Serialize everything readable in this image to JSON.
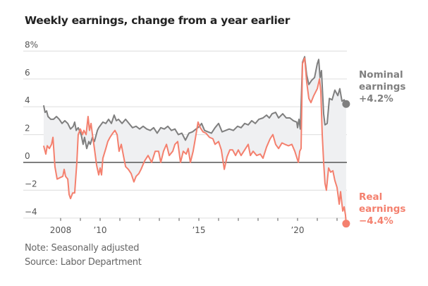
{
  "chart_data": {
    "type": "line",
    "title": "Weekly earnings, change from a year earlier",
    "xlabel": "",
    "ylabel": "",
    "ylim": [
      -4,
      8
    ],
    "xlim": [
      2006.2,
      2022.6
    ],
    "y_ticks": [
      {
        "value": 8,
        "label": "8%"
      },
      {
        "value": 6,
        "label": "6"
      },
      {
        "value": 4,
        "label": "4"
      },
      {
        "value": 2,
        "label": "2"
      },
      {
        "value": 0,
        "label": "0"
      },
      {
        "value": -2,
        "label": "−2"
      },
      {
        "value": -4,
        "label": "−4"
      }
    ],
    "x_ticks": [
      {
        "value": 2008,
        "label": "2008"
      },
      {
        "value": 2009,
        "label": ""
      },
      {
        "value": 2010,
        "label": "’10"
      },
      {
        "value": 2011,
        "label": ""
      },
      {
        "value": 2012,
        "label": ""
      },
      {
        "value": 2013,
        "label": ""
      },
      {
        "value": 2014,
        "label": ""
      },
      {
        "value": 2015,
        "label": "’15"
      },
      {
        "value": 2016,
        "label": ""
      },
      {
        "value": 2017,
        "label": ""
      },
      {
        "value": 2018,
        "label": ""
      },
      {
        "value": 2019,
        "label": ""
      },
      {
        "value": 2020,
        "label": "’20"
      },
      {
        "value": 2021,
        "label": ""
      },
      {
        "value": 2022,
        "label": ""
      }
    ],
    "grid": true,
    "shaded_between_series": true,
    "series": [
      {
        "name": "Nominal earnings",
        "label_lines": [
          "Nominal",
          "earnings",
          "+4.2%"
        ],
        "color": "#7f7f7f",
        "last_value": 4.2,
        "points": [
          [
            2007.14,
            4.1
          ],
          [
            2007.21,
            3.6
          ],
          [
            2007.29,
            3.7
          ],
          [
            2007.36,
            3.3
          ],
          [
            2007.5,
            3.1
          ],
          [
            2007.64,
            3.1
          ],
          [
            2007.79,
            3.3
          ],
          [
            2007.93,
            3.1
          ],
          [
            2008.07,
            2.8
          ],
          [
            2008.21,
            3.0
          ],
          [
            2008.36,
            2.8
          ],
          [
            2008.5,
            2.4
          ],
          [
            2008.64,
            2.6
          ],
          [
            2008.71,
            2.9
          ],
          [
            2008.79,
            2.3
          ],
          [
            2008.89,
            2.5
          ],
          [
            2009.04,
            2.0
          ],
          [
            2009.14,
            1.3
          ],
          [
            2009.21,
            1.8
          ],
          [
            2009.32,
            1.0
          ],
          [
            2009.43,
            1.5
          ],
          [
            2009.5,
            1.3
          ],
          [
            2009.61,
            1.8
          ],
          [
            2009.71,
            1.5
          ],
          [
            2009.86,
            2.3
          ],
          [
            2009.93,
            2.5
          ],
          [
            2010.14,
            2.9
          ],
          [
            2010.29,
            2.8
          ],
          [
            2010.43,
            3.1
          ],
          [
            2010.57,
            2.8
          ],
          [
            2010.71,
            3.4
          ],
          [
            2010.82,
            3.0
          ],
          [
            2010.93,
            3.1
          ],
          [
            2011.11,
            2.8
          ],
          [
            2011.29,
            3.1
          ],
          [
            2011.46,
            2.8
          ],
          [
            2011.64,
            2.5
          ],
          [
            2011.82,
            2.6
          ],
          [
            2012.0,
            2.4
          ],
          [
            2012.18,
            2.6
          ],
          [
            2012.36,
            2.4
          ],
          [
            2012.54,
            2.3
          ],
          [
            2012.71,
            2.5
          ],
          [
            2012.89,
            2.1
          ],
          [
            2013.07,
            2.5
          ],
          [
            2013.25,
            2.4
          ],
          [
            2013.43,
            2.6
          ],
          [
            2013.61,
            2.3
          ],
          [
            2013.79,
            2.4
          ],
          [
            2013.96,
            2.0
          ],
          [
            2014.14,
            2.1
          ],
          [
            2014.32,
            1.6
          ],
          [
            2014.5,
            2.1
          ],
          [
            2014.68,
            2.2
          ],
          [
            2014.86,
            2.4
          ],
          [
            2015.04,
            2.6
          ],
          [
            2015.14,
            2.8
          ],
          [
            2015.29,
            2.3
          ],
          [
            2015.46,
            2.2
          ],
          [
            2015.64,
            2.1
          ],
          [
            2015.82,
            2.5
          ],
          [
            2016.0,
            2.8
          ],
          [
            2016.18,
            2.2
          ],
          [
            2016.36,
            2.3
          ],
          [
            2016.54,
            2.4
          ],
          [
            2016.75,
            2.3
          ],
          [
            2016.96,
            2.6
          ],
          [
            2017.14,
            2.5
          ],
          [
            2017.32,
            2.8
          ],
          [
            2017.5,
            2.7
          ],
          [
            2017.68,
            3.0
          ],
          [
            2017.86,
            2.8
          ],
          [
            2018.04,
            3.1
          ],
          [
            2018.25,
            3.2
          ],
          [
            2018.43,
            3.4
          ],
          [
            2018.57,
            3.2
          ],
          [
            2018.71,
            3.5
          ],
          [
            2018.89,
            3.6
          ],
          [
            2019.04,
            3.2
          ],
          [
            2019.25,
            3.5
          ],
          [
            2019.43,
            3.2
          ],
          [
            2019.61,
            3.2
          ],
          [
            2019.79,
            3.0
          ],
          [
            2019.96,
            2.9
          ],
          [
            2020.0,
            2.5
          ],
          [
            2020.07,
            3.1
          ],
          [
            2020.14,
            2.4
          ],
          [
            2020.25,
            7.2
          ],
          [
            2020.36,
            7.6
          ],
          [
            2020.46,
            6.3
          ],
          [
            2020.57,
            5.6
          ],
          [
            2020.71,
            5.9
          ],
          [
            2020.86,
            6.1
          ],
          [
            2021.0,
            7.1
          ],
          [
            2021.07,
            7.4
          ],
          [
            2021.14,
            6.1
          ],
          [
            2021.21,
            6.6
          ],
          [
            2021.32,
            3.5
          ],
          [
            2021.39,
            2.7
          ],
          [
            2021.5,
            2.8
          ],
          [
            2021.61,
            4.6
          ],
          [
            2021.75,
            4.5
          ],
          [
            2021.89,
            5.2
          ],
          [
            2022.04,
            4.8
          ],
          [
            2022.14,
            5.3
          ],
          [
            2022.25,
            4.4
          ],
          [
            2022.36,
            4.5
          ],
          [
            2022.46,
            4.2
          ]
        ]
      },
      {
        "name": "Real earnings",
        "label_lines": [
          "Real",
          "earnings",
          "−4.4%"
        ],
        "color": "#f4806e",
        "last_value": -4.4,
        "points": [
          [
            2007.14,
            1.2
          ],
          [
            2007.25,
            0.6
          ],
          [
            2007.32,
            1.2
          ],
          [
            2007.43,
            1.0
          ],
          [
            2007.54,
            1.3
          ],
          [
            2007.61,
            1.8
          ],
          [
            2007.71,
            -0.3
          ],
          [
            2007.82,
            -1.2
          ],
          [
            2007.96,
            -1.1
          ],
          [
            2008.11,
            -1.0
          ],
          [
            2008.18,
            -0.5
          ],
          [
            2008.25,
            -1.0
          ],
          [
            2008.36,
            -1.2
          ],
          [
            2008.43,
            -2.3
          ],
          [
            2008.5,
            -2.6
          ],
          [
            2008.61,
            -2.2
          ],
          [
            2008.71,
            -2.2
          ],
          [
            2008.82,
            0.0
          ],
          [
            2008.89,
            2.0
          ],
          [
            2009.0,
            2.4
          ],
          [
            2009.11,
            2.0
          ],
          [
            2009.18,
            2.3
          ],
          [
            2009.29,
            2.0
          ],
          [
            2009.39,
            3.3
          ],
          [
            2009.46,
            2.3
          ],
          [
            2009.54,
            2.8
          ],
          [
            2009.61,
            2.0
          ],
          [
            2009.71,
            1.0
          ],
          [
            2009.82,
            -0.2
          ],
          [
            2009.93,
            -0.9
          ],
          [
            2010.0,
            -0.4
          ],
          [
            2010.07,
            -0.9
          ],
          [
            2010.14,
            0.3
          ],
          [
            2010.29,
            1.0
          ],
          [
            2010.39,
            1.5
          ],
          [
            2010.5,
            1.8
          ],
          [
            2010.64,
            2.1
          ],
          [
            2010.75,
            2.3
          ],
          [
            2010.86,
            2.0
          ],
          [
            2010.96,
            0.8
          ],
          [
            2011.07,
            1.3
          ],
          [
            2011.18,
            0.5
          ],
          [
            2011.29,
            -0.3
          ],
          [
            2011.43,
            -0.5
          ],
          [
            2011.57,
            -0.8
          ],
          [
            2011.71,
            -1.4
          ],
          [
            2011.82,
            -1.0
          ],
          [
            2011.96,
            -0.8
          ],
          [
            2012.07,
            -0.5
          ],
          [
            2012.25,
            0.1
          ],
          [
            2012.43,
            0.5
          ],
          [
            2012.61,
            0.0
          ],
          [
            2012.79,
            0.8
          ],
          [
            2012.96,
            0.8
          ],
          [
            2013.07,
            0.0
          ],
          [
            2013.21,
            0.8
          ],
          [
            2013.36,
            1.3
          ],
          [
            2013.5,
            0.5
          ],
          [
            2013.68,
            0.8
          ],
          [
            2013.79,
            1.3
          ],
          [
            2013.93,
            1.5
          ],
          [
            2014.07,
            0.0
          ],
          [
            2014.21,
            0.8
          ],
          [
            2014.36,
            0.6
          ],
          [
            2014.46,
            1.0
          ],
          [
            2014.57,
            0.0
          ],
          [
            2014.71,
            0.8
          ],
          [
            2014.82,
            1.7
          ],
          [
            2014.96,
            2.9
          ],
          [
            2015.07,
            2.5
          ],
          [
            2015.21,
            2.2
          ],
          [
            2015.36,
            2.1
          ],
          [
            2015.54,
            1.8
          ],
          [
            2015.71,
            1.7
          ],
          [
            2015.82,
            1.3
          ],
          [
            2016.0,
            1.5
          ],
          [
            2016.14,
            0.9
          ],
          [
            2016.29,
            -0.5
          ],
          [
            2016.43,
            0.4
          ],
          [
            2016.57,
            0.9
          ],
          [
            2016.71,
            0.9
          ],
          [
            2016.86,
            0.5
          ],
          [
            2017.0,
            0.9
          ],
          [
            2017.14,
            0.5
          ],
          [
            2017.32,
            0.9
          ],
          [
            2017.5,
            1.3
          ],
          [
            2017.61,
            0.5
          ],
          [
            2017.75,
            0.8
          ],
          [
            2017.93,
            0.5
          ],
          [
            2018.11,
            0.6
          ],
          [
            2018.25,
            0.3
          ],
          [
            2018.43,
            1.1
          ],
          [
            2018.61,
            1.7
          ],
          [
            2018.75,
            2.0
          ],
          [
            2018.89,
            1.3
          ],
          [
            2019.04,
            1.0
          ],
          [
            2019.21,
            1.4
          ],
          [
            2019.36,
            1.3
          ],
          [
            2019.54,
            1.2
          ],
          [
            2019.71,
            1.3
          ],
          [
            2019.86,
            0.8
          ],
          [
            2020.04,
            0.0
          ],
          [
            2020.11,
            0.8
          ],
          [
            2020.18,
            1.0
          ],
          [
            2020.25,
            7.1
          ],
          [
            2020.36,
            7.5
          ],
          [
            2020.46,
            5.8
          ],
          [
            2020.57,
            4.6
          ],
          [
            2020.68,
            4.3
          ],
          [
            2020.82,
            4.8
          ],
          [
            2021.0,
            5.3
          ],
          [
            2021.11,
            6.0
          ],
          [
            2021.18,
            5.1
          ],
          [
            2021.25,
            2.0
          ],
          [
            2021.32,
            0.0
          ],
          [
            2021.39,
            -1.5
          ],
          [
            2021.46,
            -2.0
          ],
          [
            2021.57,
            -0.4
          ],
          [
            2021.68,
            -0.7
          ],
          [
            2021.79,
            -0.6
          ],
          [
            2021.89,
            -1.3
          ],
          [
            2022.0,
            -1.8
          ],
          [
            2022.11,
            -3.0
          ],
          [
            2022.18,
            -2.1
          ],
          [
            2022.29,
            -3.5
          ],
          [
            2022.36,
            -3.2
          ],
          [
            2022.43,
            -3.8
          ],
          [
            2022.46,
            -4.4
          ]
        ]
      }
    ]
  },
  "footer": {
    "note": "Note: Seasonally adjusted",
    "source": "Source: Labor Department"
  }
}
